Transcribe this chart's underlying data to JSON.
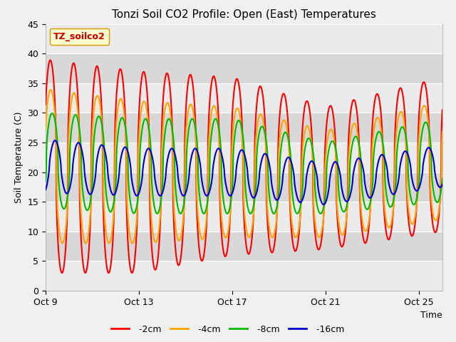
{
  "title": "Tonzi Soil CO2 Profile: Open (East) Temperatures",
  "xlabel": "Time",
  "ylabel": "Soil Temperature (C)",
  "ylim": [
    0,
    45
  ],
  "xlim_days": [
    0,
    17
  ],
  "x_tick_labels": [
    "Oct 9",
    "Oct 13",
    "Oct 17",
    "Oct 21",
    "Oct 25"
  ],
  "x_tick_positions": [
    0,
    4,
    8,
    12,
    16
  ],
  "colors": {
    "-2cm": "#ff0000",
    "-4cm": "#ffa500",
    "-8cm": "#00bb00",
    "-16cm": "#0000cc"
  },
  "legend_label": "TZ_soilco2",
  "bg_bands": [
    "#f0f0f0",
    "#e0e0e0"
  ],
  "fig_bg": "#f0f0f0",
  "line_width": 1.5,
  "figsize": [
    6.4,
    4.8
  ],
  "dpi": 100
}
